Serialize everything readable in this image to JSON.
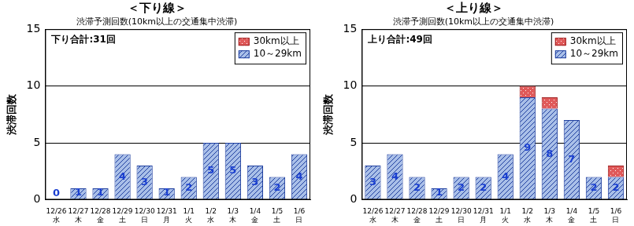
{
  "chart_data": [
    {
      "type": "bar",
      "title": "＜下り線＞",
      "subtitle": "渋滞予測回数(10km以上の交通集中渋滞)",
      "annotation": "下り合計:31回",
      "y_label": "渋滞回数",
      "categories": [
        [
          "12/26",
          "水"
        ],
        [
          "12/27",
          "木"
        ],
        [
          "12/28",
          "金"
        ],
        [
          "12/29",
          "土"
        ],
        [
          "12/30",
          "日"
        ],
        [
          "12/31",
          "月"
        ],
        [
          "1/1",
          "火"
        ],
        [
          "1/2",
          "水"
        ],
        [
          "1/3",
          "木"
        ],
        [
          "1/4",
          "金"
        ],
        [
          "1/5",
          "土"
        ],
        [
          "1/6",
          "日"
        ]
      ],
      "series": [
        {
          "name": "10～29km",
          "color": "#a9bfe8",
          "values": [
            0,
            1,
            1,
            4,
            3,
            1,
            2,
            5,
            5,
            3,
            2,
            4
          ],
          "data_labels": true
        },
        {
          "name": "30km以上",
          "color": "#e05a5a",
          "values": [
            0,
            0,
            0,
            0,
            0,
            0,
            0,
            0,
            0,
            0,
            0,
            0
          ],
          "data_labels": false
        }
      ],
      "ylim": [
        0,
        15
      ],
      "yticks": [
        0,
        5,
        10,
        15
      ],
      "stacked": true,
      "grid": true,
      "legend": "top-right"
    },
    {
      "type": "bar",
      "title": "＜上り線＞",
      "subtitle": "渋滞予測回数(10km以上の交通集中渋滞)",
      "annotation": "上り合計:49回",
      "y_label": "渋滞回数",
      "categories": [
        [
          "12/26",
          "水"
        ],
        [
          "12/27",
          "木"
        ],
        [
          "12/28",
          "金"
        ],
        [
          "12/29",
          "土"
        ],
        [
          "12/30",
          "日"
        ],
        [
          "12/31",
          "月"
        ],
        [
          "1/1",
          "火"
        ],
        [
          "1/2",
          "水"
        ],
        [
          "1/3",
          "木"
        ],
        [
          "1/4",
          "金"
        ],
        [
          "1/5",
          "土"
        ],
        [
          "1/6",
          "日"
        ]
      ],
      "series": [
        {
          "name": "10～29km",
          "color": "#a9bfe8",
          "values": [
            3,
            4,
            2,
            1,
            2,
            2,
            4,
            9,
            8,
            7,
            2,
            2
          ],
          "data_labels": true
        },
        {
          "name": "30km以上",
          "color": "#e05a5a",
          "values": [
            0,
            0,
            0,
            0,
            0,
            0,
            0,
            1,
            1,
            0,
            0,
            1
          ],
          "data_labels": false
        }
      ],
      "ylim": [
        0,
        15
      ],
      "yticks": [
        0,
        5,
        10,
        15
      ],
      "stacked": true,
      "grid": true,
      "legend": "top-right"
    }
  ]
}
